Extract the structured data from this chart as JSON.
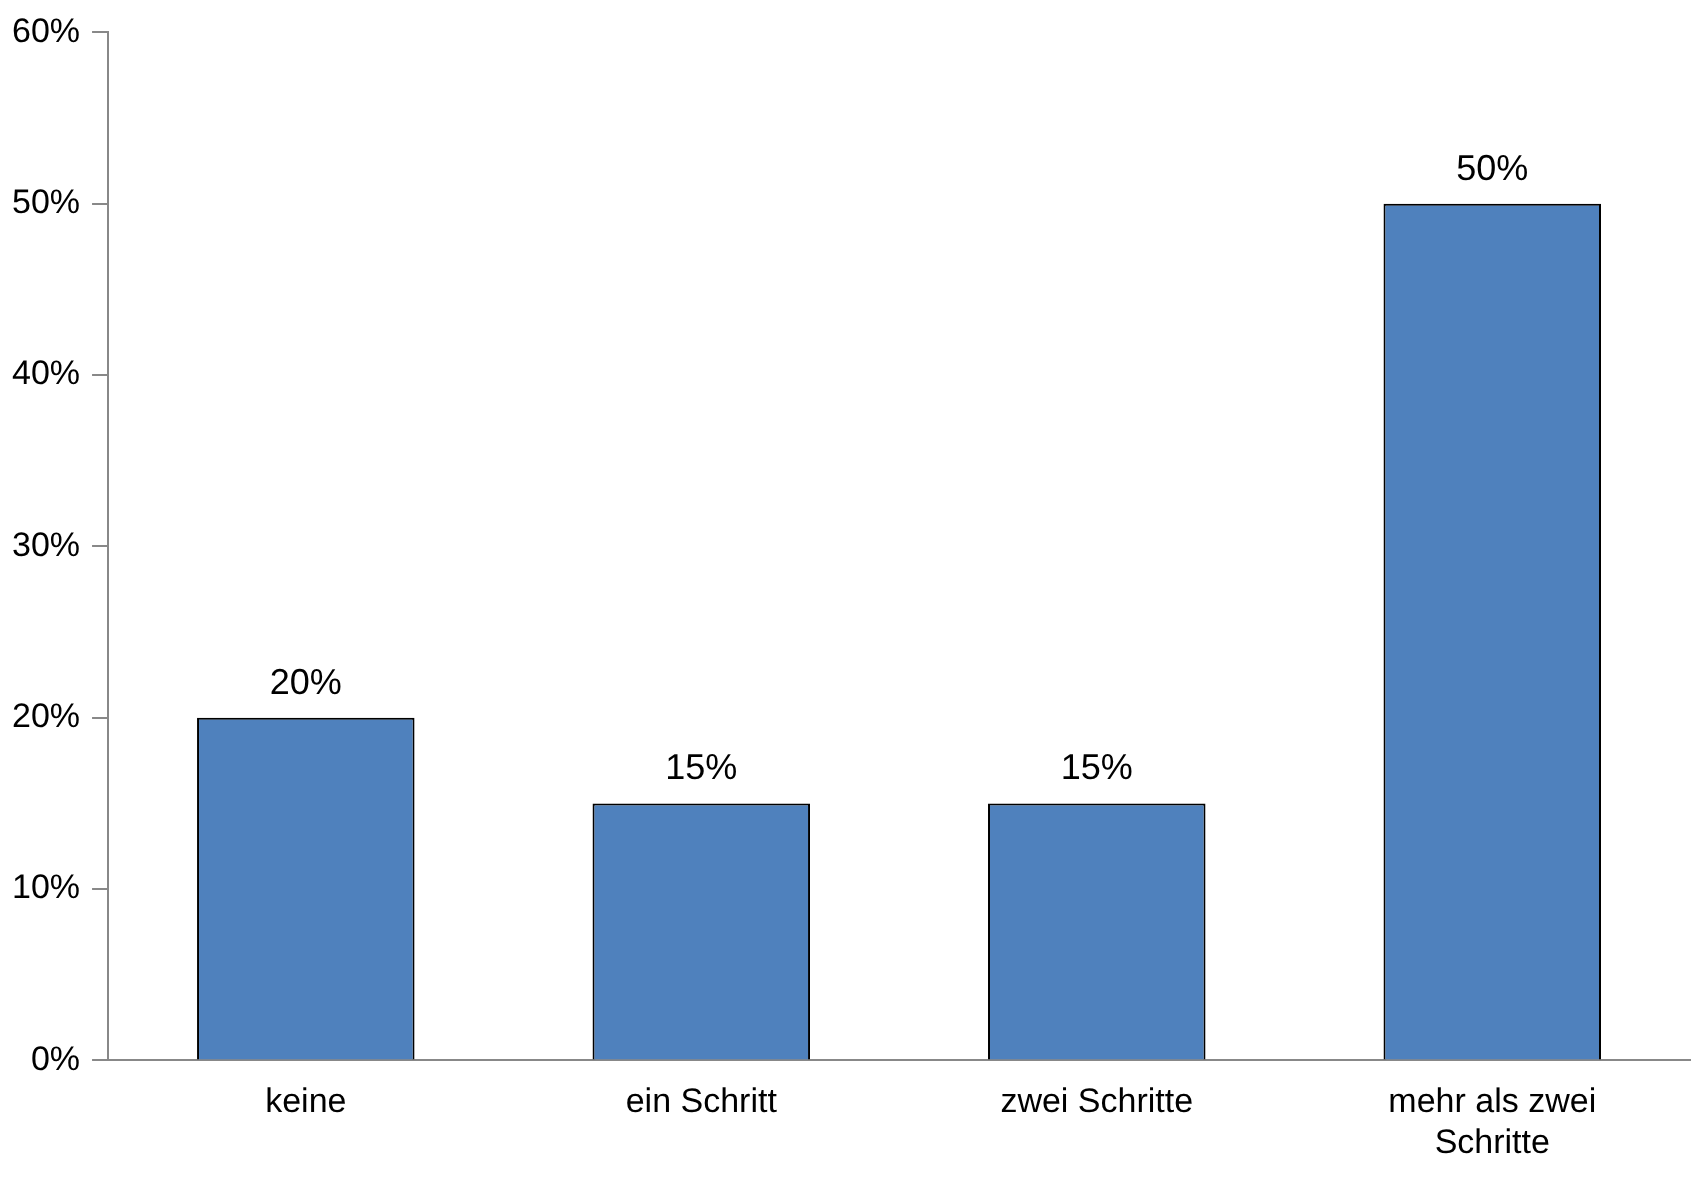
{
  "chart_data": {
    "type": "bar",
    "categories": [
      "keine",
      "ein Schritt",
      "zwei Schritte",
      "mehr als zwei Schritte"
    ],
    "values": [
      20,
      15,
      15,
      50
    ],
    "value_labels": [
      "20%",
      "15%",
      "15%",
      "50%"
    ],
    "color": "#4f81bd",
    "ylim": [
      0,
      60
    ],
    "yticks": [
      {
        "value": 0,
        "label": "0%"
      },
      {
        "value": 10,
        "label": "10%"
      },
      {
        "value": 20,
        "label": "20%"
      },
      {
        "value": 30,
        "label": "30%"
      },
      {
        "value": 40,
        "label": "40%"
      },
      {
        "value": 50,
        "label": "50%"
      },
      {
        "value": 60,
        "label": "60%"
      }
    ],
    "grid": false,
    "legend": false
  }
}
